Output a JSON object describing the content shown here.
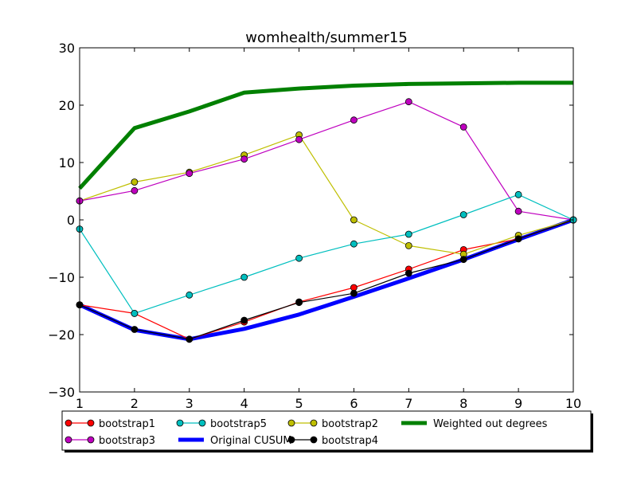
{
  "chart_data": {
    "type": "line",
    "title": "womhealth/summer15",
    "xlabel": "",
    "ylabel": "",
    "xlim": [
      1,
      10
    ],
    "ylim": [
      -30,
      30
    ],
    "x": [
      1,
      2,
      3,
      4,
      5,
      6,
      7,
      8,
      9,
      10
    ],
    "xticks": [
      "1",
      "2",
      "3",
      "4",
      "5",
      "6",
      "7",
      "8",
      "9",
      "10"
    ],
    "yticks": [
      -30,
      -20,
      -10,
      0,
      10,
      20,
      30
    ],
    "ytick_labels": [
      "−30",
      "−20",
      "−10",
      "0",
      "10",
      "20",
      "30"
    ],
    "grid": false,
    "legend_position": "below plot",
    "series": [
      {
        "name": "bootstrap1",
        "color": "#ff0000",
        "marker": true,
        "thick": false,
        "values": [
          -14.8,
          -16.3,
          -20.8,
          -17.8,
          -14.3,
          -11.8,
          -8.6,
          -5.2,
          -3.3,
          0.0
        ]
      },
      {
        "name": "bootstrap2",
        "color": "#bfbf00",
        "marker": true,
        "thick": false,
        "values": [
          3.3,
          6.6,
          8.3,
          11.3,
          14.8,
          0.0,
          -4.5,
          -6.0,
          -2.7,
          0.0
        ]
      },
      {
        "name": "bootstrap3",
        "color": "#bf00bf",
        "marker": true,
        "thick": false,
        "values": [
          3.3,
          5.1,
          8.1,
          10.6,
          14.0,
          17.4,
          20.6,
          16.2,
          1.5,
          0.0
        ]
      },
      {
        "name": "bootstrap4",
        "color": "#000000",
        "marker": true,
        "thick": false,
        "values": [
          -14.8,
          -19.1,
          -20.8,
          -17.5,
          -14.4,
          -12.8,
          -9.3,
          -6.9,
          -3.3,
          0.0
        ]
      },
      {
        "name": "bootstrap5",
        "color": "#00bfbf",
        "marker": true,
        "thick": false,
        "values": [
          -1.6,
          -16.3,
          -13.1,
          -10.0,
          -6.7,
          -4.2,
          -2.5,
          0.9,
          4.4,
          0.0
        ]
      },
      {
        "name": "Weighted out degrees",
        "color": "#008000",
        "marker": false,
        "thick": true,
        "values": [
          5.5,
          16.0,
          18.9,
          22.2,
          22.9,
          23.4,
          23.7,
          23.8,
          23.9,
          23.9
        ]
      },
      {
        "name": "Original CUSUM",
        "color": "#0000ff",
        "marker": false,
        "thick": true,
        "values": [
          -14.8,
          -19.2,
          -20.8,
          -19.0,
          -16.5,
          -13.4,
          -10.2,
          -6.9,
          -3.4,
          0.0
        ]
      }
    ],
    "draw_order": [
      5,
      6,
      0,
      1,
      2,
      3,
      4
    ],
    "legend_order": [
      0,
      2,
      4,
      6,
      1,
      3,
      5
    ]
  }
}
